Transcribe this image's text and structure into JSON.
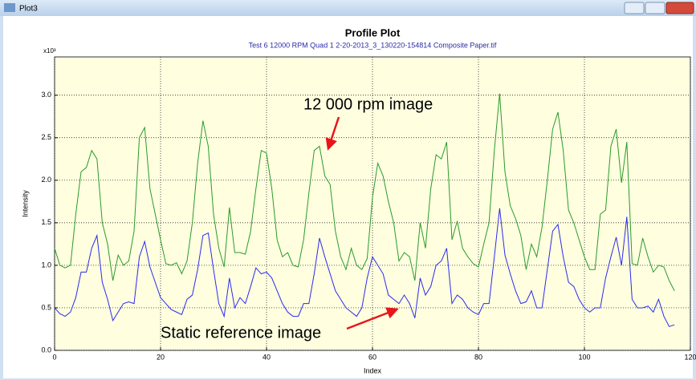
{
  "window_title": "Plot3",
  "chart_data": {
    "type": "line",
    "title": "Profile Plot",
    "subtitle": "Test 6 12000 RPM Quad 1 2-20-2013_3_130220-154814 Composite Paper.tif",
    "x_label": "Index",
    "y_label": "Intensity",
    "y_multiplier": "x10³",
    "annotations": [
      "12 000 rpm image",
      "Static reference image"
    ],
    "xlim": [
      0,
      120
    ],
    "xticks": [
      0,
      20,
      40,
      60,
      80,
      100,
      120
    ],
    "ylim": [
      0,
      3.45
    ],
    "yticks": [
      {
        "value": 0,
        "label": "0.0"
      },
      0.5,
      {
        "value": 1,
        "label": "1.0"
      },
      1.5,
      {
        "value": 2,
        "label": "2.0"
      },
      2.5,
      {
        "value": 3,
        "label": "3.0"
      }
    ],
    "grid": true,
    "x": [
      0,
      1,
      2,
      3,
      4,
      5,
      6,
      7,
      8,
      9,
      10,
      11,
      12,
      13,
      14,
      15,
      16,
      17,
      18,
      19,
      20,
      21,
      22,
      23,
      24,
      25,
      26,
      27,
      28,
      29,
      30,
      31,
      32,
      33,
      34,
      35,
      36,
      37,
      38,
      39,
      40,
      41,
      42,
      43,
      44,
      45,
      46,
      47,
      48,
      49,
      50,
      51,
      52,
      53,
      54,
      55,
      56,
      57,
      58,
      59,
      60,
      61,
      62,
      63,
      64,
      65,
      66,
      67,
      68,
      69,
      70,
      71,
      72,
      73,
      74,
      75,
      76,
      77,
      78,
      79,
      80,
      81,
      82,
      83,
      84,
      85,
      86,
      87,
      88,
      89,
      90,
      91,
      92,
      93,
      94,
      95,
      96,
      97,
      98,
      99,
      100,
      101,
      102,
      103,
      104,
      105,
      106,
      107,
      108,
      109,
      110,
      111,
      112,
      113,
      114,
      115,
      116,
      117
    ],
    "series": [
      {
        "color": "#2a9a2a",
        "values": [
          1.2,
          1.0,
          0.97,
          1.0,
          1.6,
          2.1,
          2.15,
          2.35,
          2.25,
          1.5,
          1.25,
          0.82,
          1.12,
          1.0,
          1.05,
          1.4,
          2.5,
          2.62,
          1.9,
          1.6,
          1.3,
          1.02,
          1.0,
          1.03,
          0.9,
          1.05,
          1.5,
          2.2,
          2.7,
          2.4,
          1.6,
          1.2,
          0.98,
          1.68,
          1.15,
          1.15,
          1.13,
          1.4,
          1.9,
          2.35,
          2.32,
          1.9,
          1.3,
          1.1,
          1.15,
          1.0,
          0.98,
          1.3,
          1.85,
          2.35,
          2.4,
          2.05,
          1.95,
          1.4,
          1.1,
          0.95,
          1.2,
          1.0,
          0.95,
          1.08,
          1.8,
          2.2,
          2.05,
          1.75,
          1.5,
          1.05,
          1.15,
          1.1,
          0.82,
          1.5,
          1.2,
          1.9,
          2.3,
          2.25,
          2.45,
          1.3,
          1.52,
          1.2,
          1.1,
          1.02,
          0.98,
          1.25,
          1.5,
          2.35,
          3.02,
          2.1,
          1.7,
          1.55,
          1.35,
          0.95,
          1.25,
          1.1,
          1.45,
          2.0,
          2.6,
          2.8,
          2.35,
          1.65,
          1.5,
          1.3,
          1.1,
          0.95,
          0.95,
          1.6,
          1.65,
          2.4,
          2.6,
          1.97,
          2.45,
          1.02,
          1.0,
          1.32,
          1.1,
          0.92,
          1.0,
          0.98,
          0.82,
          0.7
        ]
      },
      {
        "color": "#2a2aee",
        "values": [
          0.5,
          0.43,
          0.4,
          0.45,
          0.62,
          0.92,
          0.92,
          1.2,
          1.35,
          0.8,
          0.6,
          0.35,
          0.45,
          0.55,
          0.57,
          0.55,
          1.1,
          1.28,
          0.98,
          0.8,
          0.62,
          0.55,
          0.48,
          0.45,
          0.42,
          0.6,
          0.65,
          0.95,
          1.35,
          1.38,
          0.95,
          0.55,
          0.4,
          0.85,
          0.5,
          0.62,
          0.55,
          0.75,
          0.97,
          0.9,
          0.92,
          0.85,
          0.7,
          0.55,
          0.45,
          0.4,
          0.4,
          0.55,
          0.55,
          0.9,
          1.32,
          1.1,
          0.9,
          0.7,
          0.6,
          0.5,
          0.45,
          0.4,
          0.5,
          0.85,
          1.1,
          1.0,
          0.9,
          0.65,
          0.6,
          0.55,
          0.65,
          0.55,
          0.38,
          0.85,
          0.65,
          0.75,
          1.0,
          1.05,
          1.2,
          0.55,
          0.65,
          0.6,
          0.5,
          0.45,
          0.42,
          0.55,
          0.55,
          1.1,
          1.67,
          1.12,
          0.9,
          0.7,
          0.55,
          0.57,
          0.7,
          0.5,
          0.5,
          0.95,
          1.4,
          1.48,
          1.1,
          0.8,
          0.75,
          0.6,
          0.5,
          0.45,
          0.5,
          0.5,
          0.85,
          1.1,
          1.33,
          1.0,
          1.57,
          0.6,
          0.5,
          0.5,
          0.52,
          0.45,
          0.6,
          0.4,
          0.28,
          0.3
        ]
      }
    ]
  }
}
